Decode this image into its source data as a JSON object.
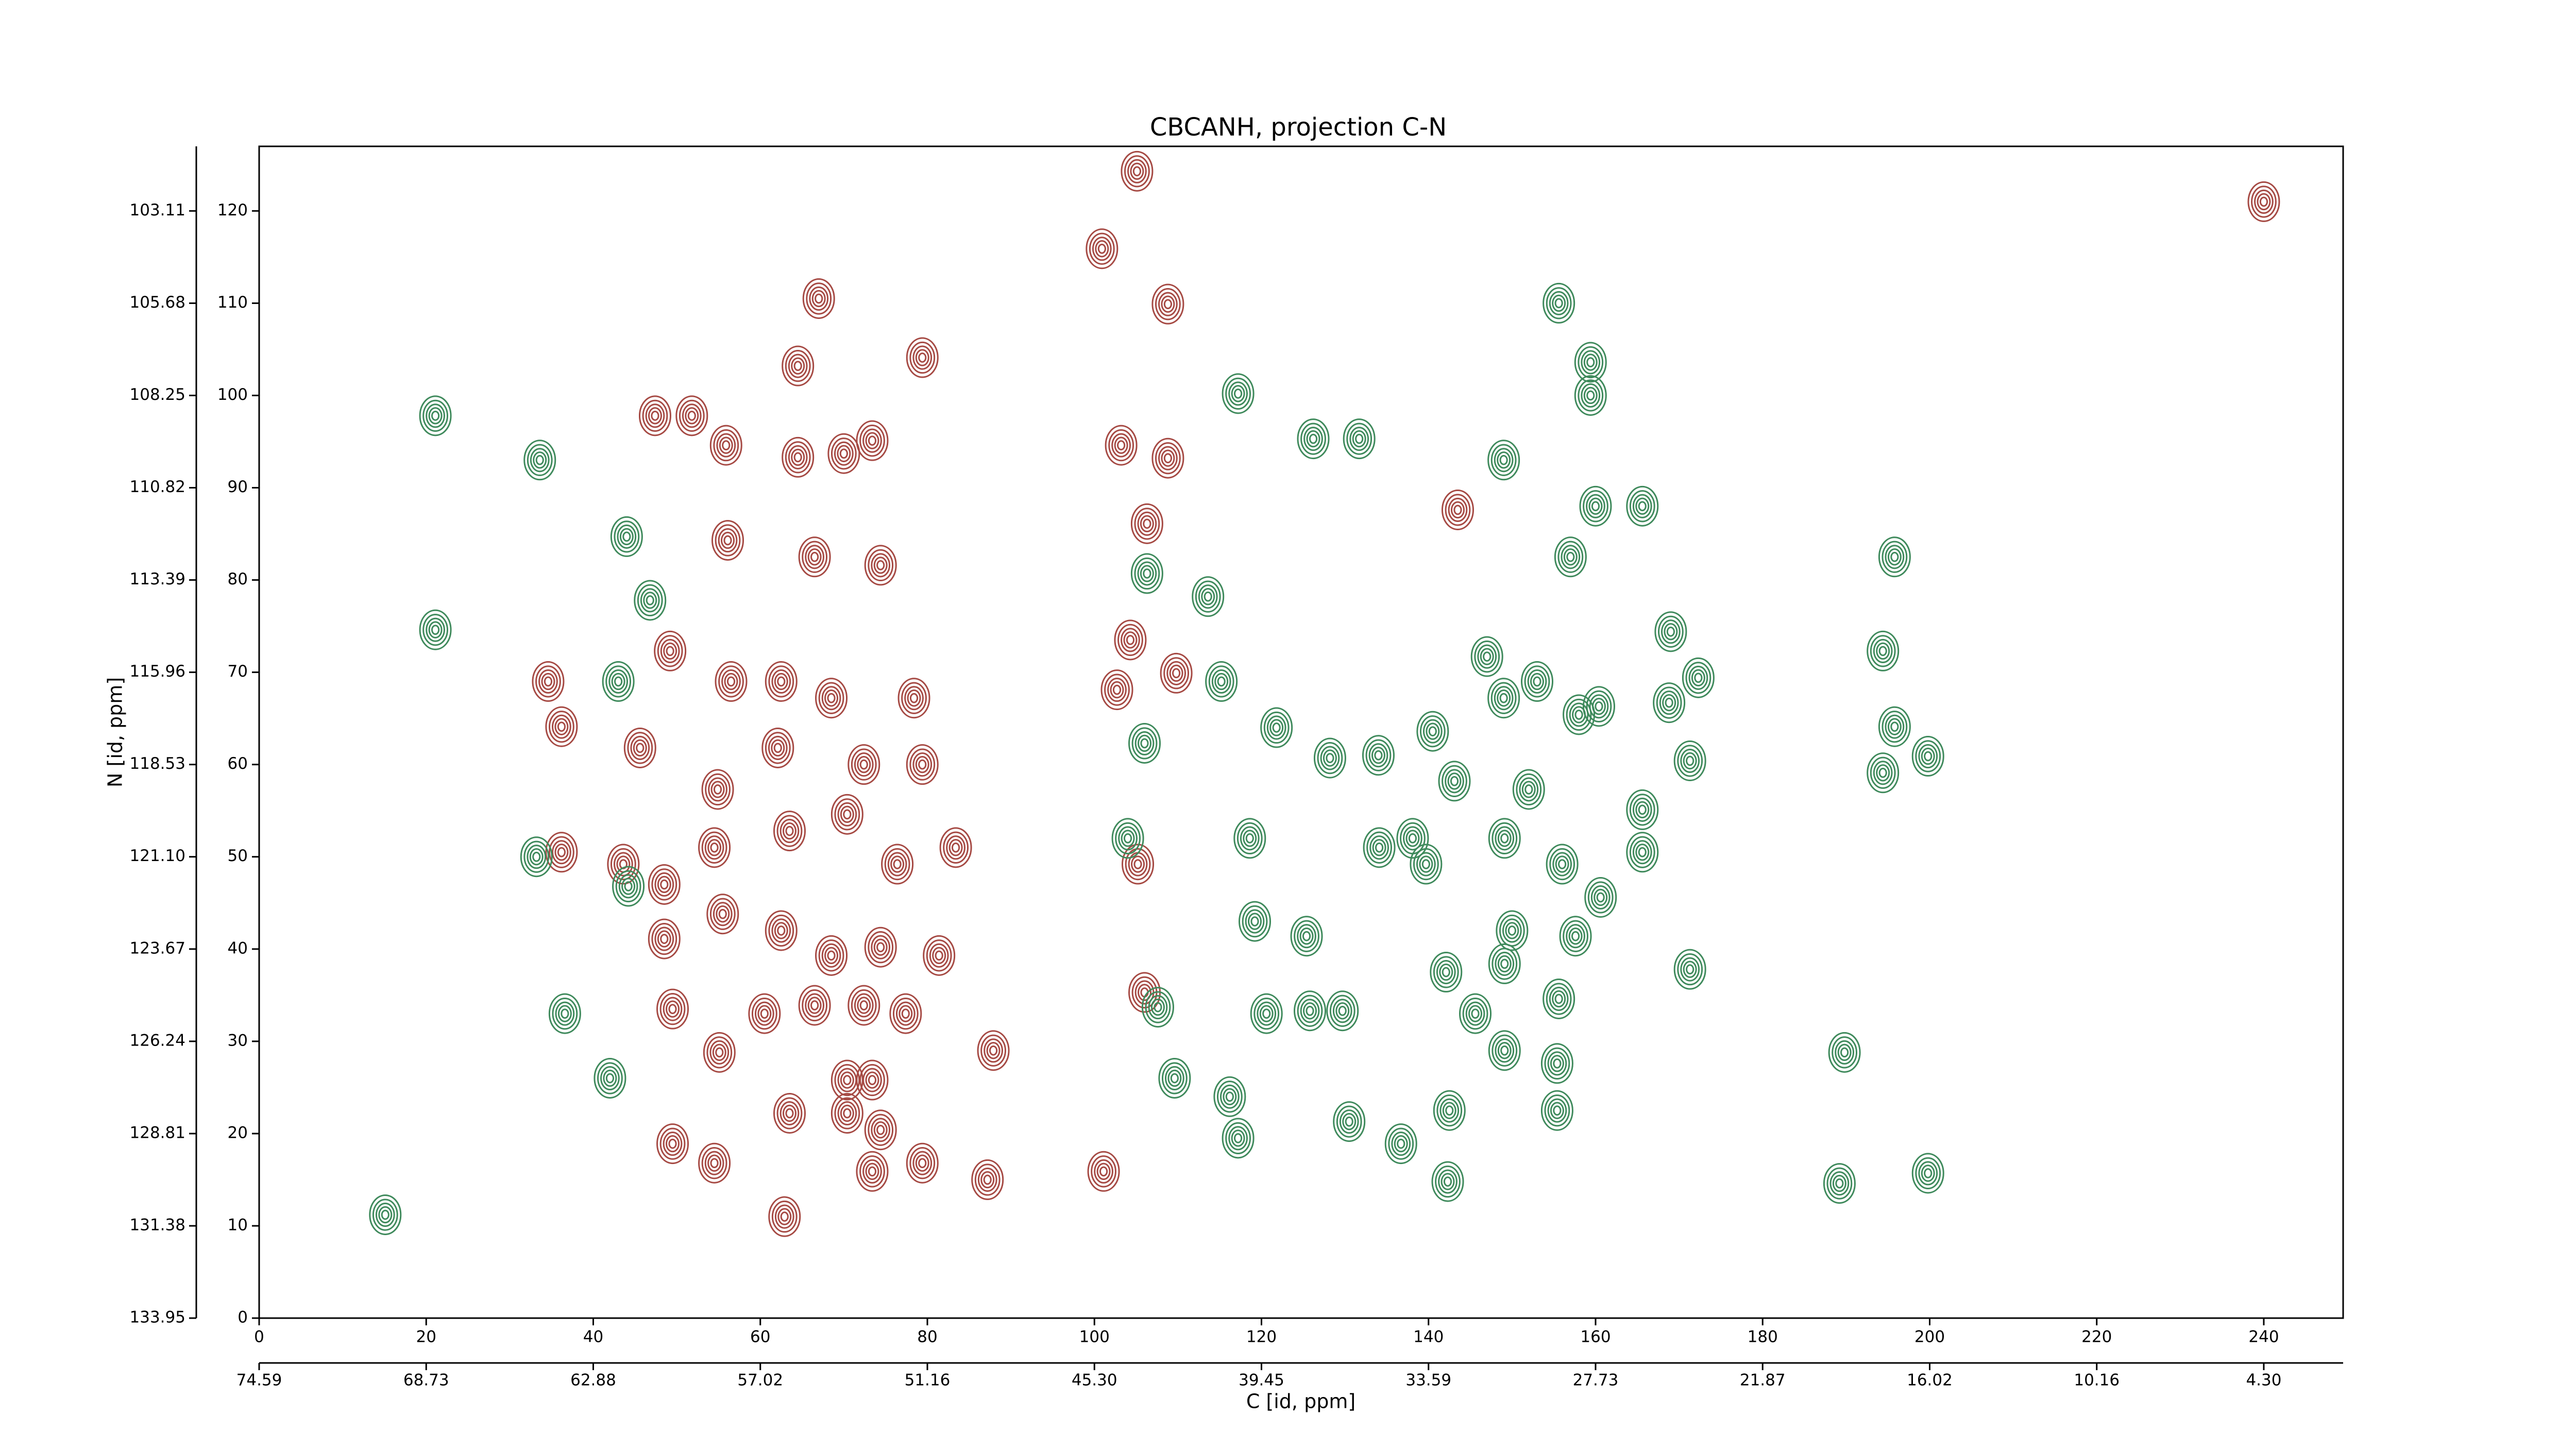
{
  "chart_data": {
    "type": "contour",
    "title": "CBCANH, projection C-N",
    "xlabel": "C [id, ppm]",
    "ylabel": "N [id, ppm]",
    "xlim": [
      0,
      249.5
    ],
    "ylim": [
      0,
      127
    ],
    "xticks": [
      0,
      20,
      40,
      60,
      80,
      100,
      120,
      140,
      160,
      180,
      200,
      220,
      240
    ],
    "yticks": [
      0,
      10,
      20,
      30,
      40,
      50,
      60,
      70,
      80,
      90,
      100,
      110,
      120
    ],
    "x2ticks": [
      {
        "value": 0,
        "label": "74.59"
      },
      {
        "value": 20,
        "label": "68.73"
      },
      {
        "value": 40,
        "label": "62.88"
      },
      {
        "value": 60,
        "label": "57.02"
      },
      {
        "value": 80,
        "label": "51.16"
      },
      {
        "value": 100,
        "label": "45.30"
      },
      {
        "value": 120,
        "label": "39.45"
      },
      {
        "value": 140,
        "label": "33.59"
      },
      {
        "value": 160,
        "label": "27.73"
      },
      {
        "value": 180,
        "label": "21.87"
      },
      {
        "value": 200,
        "label": "16.02"
      },
      {
        "value": 220,
        "label": "10.16"
      },
      {
        "value": 240,
        "label": "4.30"
      }
    ],
    "y2ticks": [
      {
        "value": 0,
        "label": "133.95"
      },
      {
        "value": 10,
        "label": "131.38"
      },
      {
        "value": 20,
        "label": "128.81"
      },
      {
        "value": 30,
        "label": "126.24"
      },
      {
        "value": 40,
        "label": "123.67"
      },
      {
        "value": 50,
        "label": "121.10"
      },
      {
        "value": 60,
        "label": "118.53"
      },
      {
        "value": 70,
        "label": "115.96"
      },
      {
        "value": 80,
        "label": "113.39"
      },
      {
        "value": 90,
        "label": "110.82"
      },
      {
        "value": 100,
        "label": "108.25"
      },
      {
        "value": 110,
        "label": "105.68"
      },
      {
        "value": 120,
        "label": "103.11"
      }
    ],
    "series": [
      {
        "color": "#a64a44",
        "x": [
          105.1,
          100.9,
          108.8,
          108.8,
          103.2,
          106.3,
          102.7,
          109.8,
          104.3,
          106,
          105.2,
          101.1,
          87.2,
          87.9,
          67,
          79.4,
          64.5,
          47.4,
          51.8,
          55.9,
          64.5,
          70,
          73.4,
          56.1,
          66.5,
          74.4,
          34.6,
          36.2,
          45.6,
          49.2,
          56.5,
          62.5,
          62.1,
          68.5,
          78.4,
          72.4,
          79.4,
          54.9,
          54.5,
          63.5,
          70.4,
          76.4,
          83.4,
          36.2,
          43.6,
          55.5,
          48.5,
          48.5,
          62.5,
          68.5,
          74.4,
          81.4,
          49.5,
          60.5,
          66.5,
          72.4,
          77.4,
          55.1,
          70.4,
          73.4,
          63.5,
          70.4,
          74.4,
          49.5,
          54.5,
          62.9,
          73.4,
          79.4,
          143.5,
          240
        ],
        "y": [
          124.3,
          115.9,
          109.9,
          93.2,
          94.6,
          86.1,
          68.1,
          69.9,
          73.5,
          35.3,
          49.2,
          15.9,
          15,
          29,
          110.5,
          104.1,
          103.2,
          97.8,
          97.8,
          94.6,
          93.3,
          93.7,
          95.1,
          84.3,
          82.5,
          81.6,
          69,
          64.1,
          61.8,
          72.3,
          69,
          69,
          61.8,
          67.2,
          67.2,
          60,
          60,
          57.3,
          51,
          52.8,
          54.6,
          49.2,
          51,
          50.5,
          49.2,
          43.8,
          41.1,
          47,
          42,
          39.3,
          40.2,
          39.3,
          33.5,
          33,
          33.9,
          33.9,
          33,
          28.8,
          25.8,
          25.8,
          22.2,
          22.2,
          20.4,
          18.9,
          16.8,
          11,
          15.9,
          16.8,
          87.6,
          121
        ]
      },
      {
        "color": "#3f8a5c",
        "x": [
          21.1,
          33.6,
          44,
          46.8,
          43,
          21.1,
          33.2,
          44.2,
          36.6,
          42,
          15.1,
          104,
          106,
          109.6,
          107.6,
          116.2,
          117.2,
          115.2,
          121.8,
          118.6,
          119.2,
          125.4,
          128.2,
          131.7,
          126.2,
          117.2,
          113.6,
          106.3,
          120.6,
          125.8,
          129.7,
          130.5,
          136.7,
          142.3,
          142.5,
          155.4,
          149.1,
          155.4,
          155.6,
          145.6,
          142.1,
          150,
          156,
          158,
          157,
          160,
          165.6,
          155.6,
          159.4,
          159.4,
          140.5,
          138.1,
          143.1,
          149.1,
          152,
          147,
          149,
          153,
          160.4,
          169,
          172.3,
          168.8,
          171.3,
          165.6,
          165.6,
          160.6,
          171.3,
          157.6,
          149.1,
          139.7,
          134.1,
          134,
          189.8,
          189.2,
          199.8,
          195.8,
          194.4,
          195.8,
          199.8,
          194.4,
          149
        ],
        "y": [
          97.8,
          93,
          84.7,
          77.8,
          69,
          74.6,
          50,
          46.8,
          33,
          26,
          11.2,
          52,
          62.3,
          26,
          33.7,
          24,
          19.5,
          69,
          64,
          52,
          43,
          41.4,
          60.7,
          95.3,
          95.3,
          100.2,
          78.2,
          80.7,
          33,
          33.3,
          33.3,
          21.3,
          18.9,
          14.8,
          22.5,
          22.5,
          29,
          27.6,
          34.6,
          33,
          37.5,
          42,
          49.2,
          65.4,
          82.5,
          88,
          88,
          110,
          103.6,
          100,
          63.6,
          52,
          58.2,
          52,
          57.3,
          71.7,
          67.2,
          69,
          66.3,
          74.4,
          69.4,
          66.7,
          60.4,
          55.1,
          50.5,
          45.6,
          37.8,
          41.4,
          38.4,
          49.2,
          51,
          61,
          28.8,
          14.6,
          15.7,
          82.5,
          72.3,
          64.1,
          60.9,
          59.1,
          93
        ]
      }
    ]
  }
}
